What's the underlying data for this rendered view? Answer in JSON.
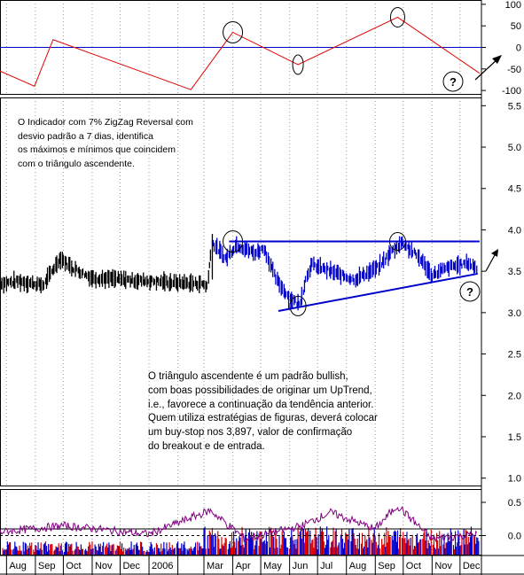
{
  "chart_data": [
    {
      "panel": "zigzag",
      "type": "line",
      "y_ticks": [
        "100",
        "50",
        "0",
        "-50",
        "-100"
      ],
      "ylim": [
        -110,
        110
      ],
      "reference_line": 0,
      "series": [
        {
          "x": [
            "2005-07-25",
            "2005-08-31",
            "2005-09-20",
            "2006-02-15",
            "2006-04-01",
            "2006-06-10",
            "2006-09-25",
            "2006-12-22"
          ],
          "values": [
            -55,
            -90,
            18,
            -98,
            35,
            -40,
            70,
            -60
          ]
        }
      ],
      "annotations": [
        {
          "text": "?"
        }
      ]
    },
    {
      "panel": "price",
      "type": "bar",
      "y_ticks": [
        "5.5",
        "5.0",
        "4.5",
        "4.0",
        "3.5",
        "3.0",
        "2.5",
        "2.0",
        "1.5",
        "1.0"
      ],
      "ylim": [
        0.9,
        5.6
      ],
      "resistance": 3.86,
      "support_line": {
        "x": [
          "2006-05-20",
          "2006-12-20"
        ],
        "y": [
          3.02,
          3.47
        ]
      },
      "series": [
        {
          "x": [
            "2005-07-25",
            "2005-08-15",
            "2005-09-10",
            "2005-09-28",
            "2005-10-10",
            "2005-11-01",
            "2005-12-01",
            "2006-01-05",
            "2006-02-01",
            "2006-02-28",
            "2006-03-05",
            "2006-03-10"
          ],
          "values": [
            3.35,
            3.38,
            3.33,
            3.66,
            3.55,
            3.42,
            3.4,
            3.38,
            3.36,
            3.35,
            3.32,
            3.85
          ]
        },
        {
          "x": [
            "2006-03-10",
            "2006-03-25",
            "2006-04-05",
            "2006-04-25",
            "2006-05-05",
            "2006-05-18",
            "2006-06-01",
            "2006-06-12",
            "2006-06-20",
            "2006-06-25",
            "2006-07-15",
            "2006-08-10",
            "2006-09-05",
            "2006-09-20",
            "2006-09-30",
            "2006-10-20",
            "2006-11-01",
            "2006-11-20",
            "2006-12-10",
            "2006-12-20"
          ],
          "values": [
            3.85,
            3.65,
            3.82,
            3.72,
            3.78,
            3.4,
            3.18,
            3.1,
            3.45,
            3.58,
            3.5,
            3.4,
            3.55,
            3.75,
            3.85,
            3.65,
            3.45,
            3.55,
            3.6,
            3.53
          ]
        }
      ],
      "annotations": [
        {
          "text": "?"
        }
      ]
    },
    {
      "panel": "oscillator",
      "type": "line",
      "y_ticks": [
        "0.5",
        "0.0"
      ],
      "ylim": [
        -0.3,
        0.7
      ],
      "series": [
        {
          "x": [
            "2005-07-25",
            "2005-10-01",
            "2006-01-01",
            "2006-03-08",
            "2006-04-15",
            "2006-06-15",
            "2006-07-15",
            "2006-09-01",
            "2006-09-25",
            "2006-11-01",
            "2006-12-20"
          ],
          "values": [
            0.05,
            0.15,
            0.02,
            0.38,
            -0.05,
            0.15,
            0.35,
            0.1,
            0.45,
            -0.05,
            0.02
          ]
        }
      ]
    }
  ],
  "x_axis_labels": [
    "Aug",
    "Sep",
    "Oct",
    "Nov",
    "Dec",
    "2006",
    "Mar",
    "Apr",
    "May",
    "Jun",
    "Jul",
    "Aug",
    "Sep",
    "Oct",
    "Nov",
    "Dec"
  ],
  "notes": {
    "top": "O Indicador com 7% ZigZag Reversal com\ndesvio padrão a 7 dias, identifica\nos máximos e mínimos que coincidem\ncom o triângulo ascendente.",
    "bottom": "O triângulo ascendente é um padrão bullish,\ncom boas possibilidades de originar um UpTrend,\ni.e., favorece a continuação da tendência anterior.\nQuem utiliza estratégias de figuras, deverá colocar\num buy-stop nos 3,897, valor de confirmação\ndo breakout e de entrada."
  },
  "colors": {
    "zigzag": "#e00000",
    "zero_line": "#0000cc",
    "price_early": "#000000",
    "price_late": "#0000cc",
    "pattern_lines": "#0000cc",
    "oscillator": "#800080",
    "volume_up": "#0000cc",
    "volume_down": "#e00000",
    "grid": "#999999"
  }
}
